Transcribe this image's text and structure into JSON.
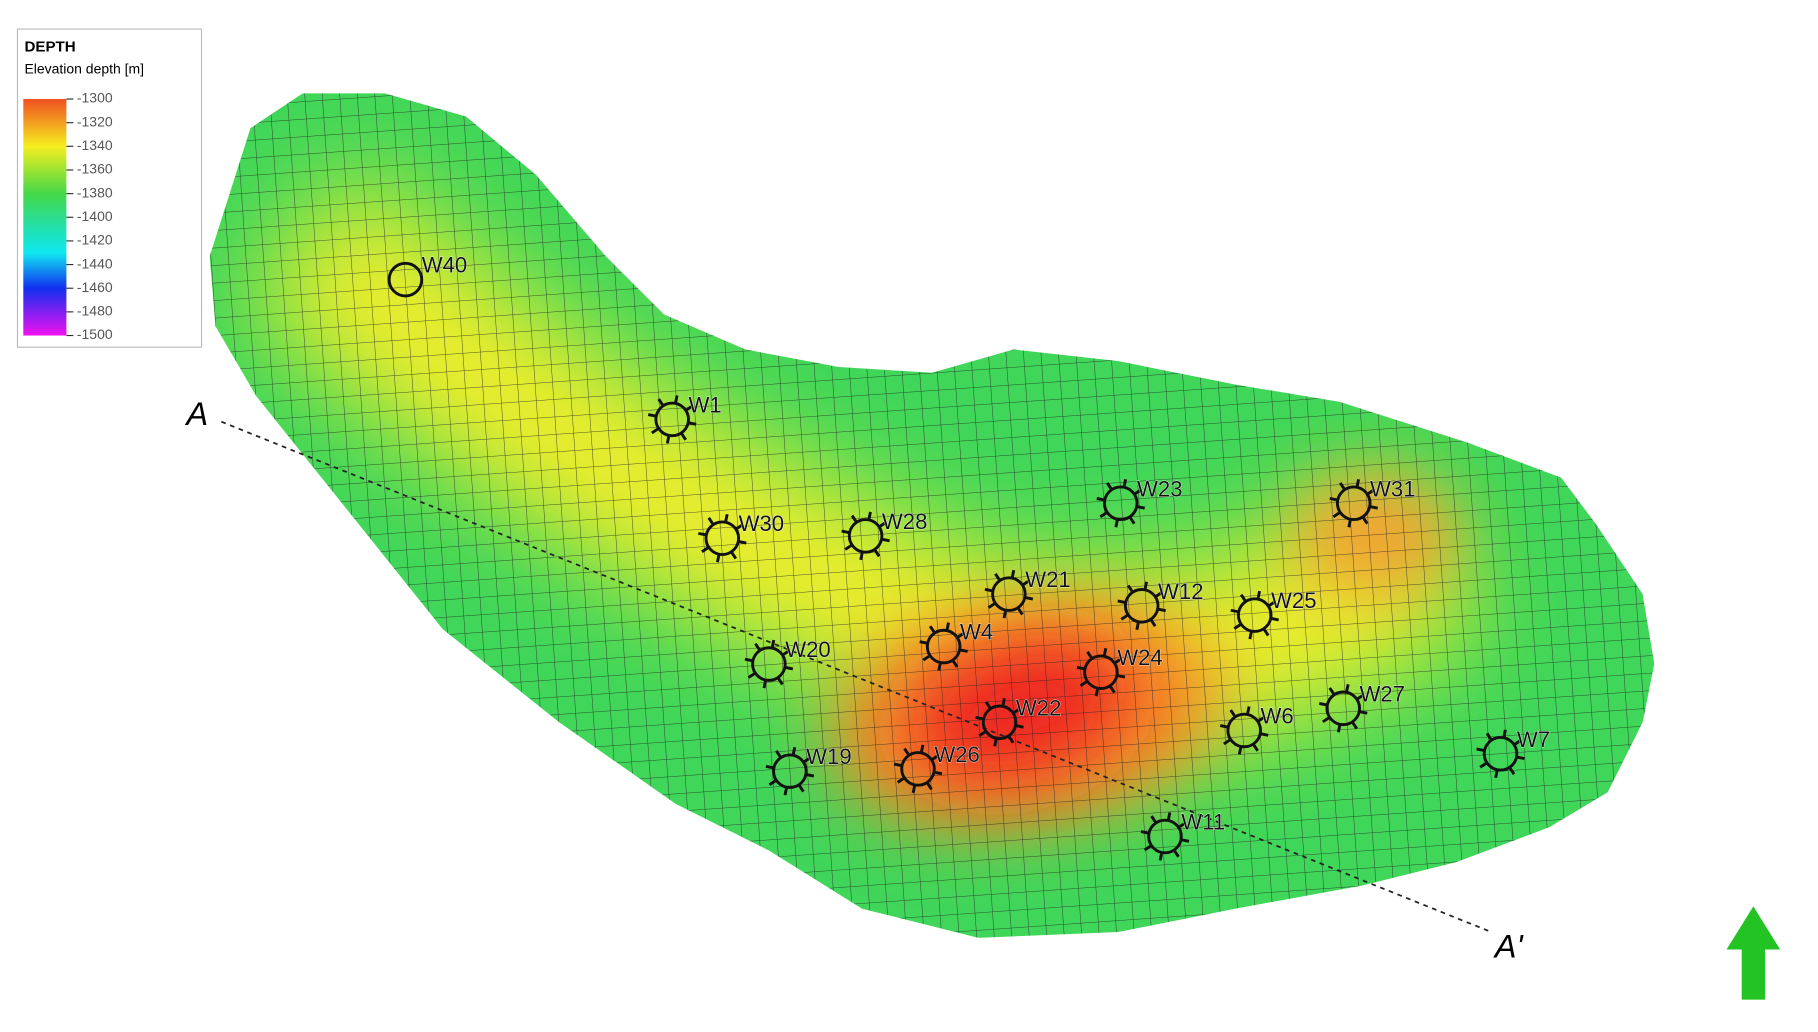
{
  "legend": {
    "title": "DEPTH",
    "subtitle": "Elevation depth [m]",
    "ticks": [
      -1300,
      -1320,
      -1340,
      -1360,
      -1380,
      -1400,
      -1420,
      -1440,
      -1460,
      -1480,
      -1500
    ]
  },
  "section": {
    "start": "A",
    "end": "A'"
  },
  "wells": [
    {
      "label": "W40"
    },
    {
      "label": "W1"
    },
    {
      "label": "W30"
    },
    {
      "label": "W28"
    },
    {
      "label": "W23"
    },
    {
      "label": "W31"
    },
    {
      "label": "W21"
    },
    {
      "label": "W12"
    },
    {
      "label": "W25"
    },
    {
      "label": "W4"
    },
    {
      "label": "W24"
    },
    {
      "label": "W20"
    },
    {
      "label": "W22"
    },
    {
      "label": "W6"
    },
    {
      "label": "W27"
    },
    {
      "label": "W7"
    },
    {
      "label": "W19"
    },
    {
      "label": "W26"
    },
    {
      "label": "W11"
    }
  ]
}
